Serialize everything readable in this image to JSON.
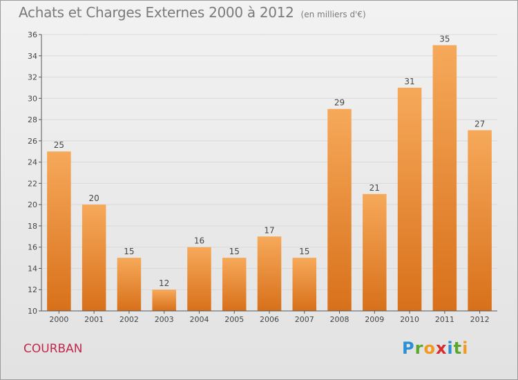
{
  "header": {
    "title": "Achats et Charges Externes 2000 à 2012",
    "unit": "(en milliers d'€)"
  },
  "commune": "COURBAN",
  "brand": {
    "letters": [
      "P",
      "r",
      "o",
      "x",
      "i",
      "t",
      "i"
    ],
    "colors": [
      "#2a8fd6",
      "#5aa72e",
      "#f29a1e",
      "#d82c2c",
      "#2a8fd6",
      "#5aa72e",
      "#f29a1e"
    ]
  },
  "colors": {
    "bar_light": "#f6a95a",
    "bar_dark": "#d8701a",
    "axis": "#555555",
    "grid": "#d9d9d9"
  },
  "chart_data": {
    "type": "bar",
    "categories": [
      "2000",
      "2001",
      "2002",
      "2003",
      "2004",
      "2005",
      "2006",
      "2007",
      "2008",
      "2009",
      "2010",
      "2011",
      "2012"
    ],
    "values": [
      25,
      20,
      15,
      12,
      16,
      15,
      17,
      15,
      29,
      21,
      31,
      35,
      27
    ],
    "ylim": [
      10,
      36
    ],
    "yticks": [
      10,
      12,
      14,
      16,
      18,
      20,
      22,
      24,
      26,
      28,
      30,
      32,
      34,
      36
    ],
    "grid": true,
    "data_labels": true
  }
}
